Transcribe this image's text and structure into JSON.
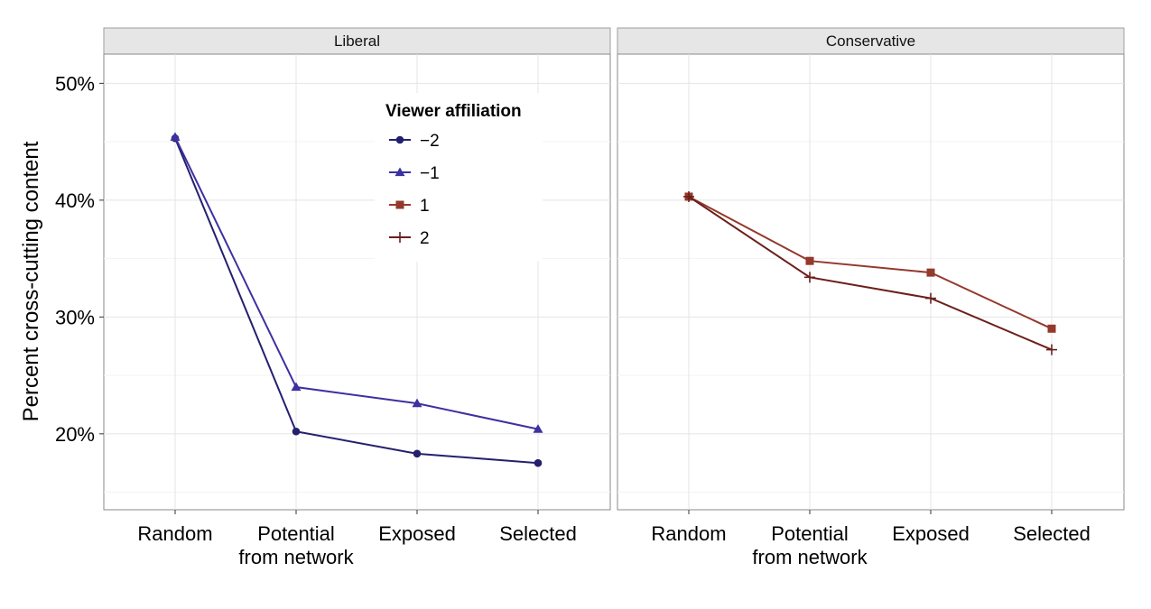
{
  "chart_data": {
    "type": "line",
    "ylabel": "Percent cross-cutting content",
    "xlabel": "",
    "ylim": [
      13.5,
      52.5
    ],
    "y_ticks": [
      20,
      30,
      40,
      50
    ],
    "y_tick_labels": [
      "20%",
      "30%",
      "40%",
      "50%"
    ],
    "grid": true,
    "categories": [
      "Random",
      "Potential\nfrom network",
      "Exposed",
      "Selected"
    ],
    "legend": {
      "title": "Viewer affiliation",
      "placement": "inside-top-right-of-left-panel",
      "entries": [
        {
          "label": "−2",
          "color": "#24206e",
          "shape": "circle"
        },
        {
          "label": "−1",
          "color": "#3d30a0",
          "shape": "triangle"
        },
        {
          "label": "1",
          "color": "#94392c",
          "shape": "square"
        },
        {
          "label": "2",
          "color": "#6b1f1a",
          "shape": "plus"
        }
      ]
    },
    "panels": [
      {
        "title": "Liberal",
        "series": [
          {
            "name": "−2",
            "color": "#24206e",
            "shape": "circle",
            "values": [
              45.3,
              20.2,
              18.3,
              17.5
            ]
          },
          {
            "name": "−1",
            "color": "#3d30a0",
            "shape": "triangle",
            "values": [
              45.4,
              24.0,
              22.6,
              20.4
            ]
          }
        ]
      },
      {
        "title": "Conservative",
        "series": [
          {
            "name": "1",
            "color": "#94392c",
            "shape": "square",
            "values": [
              40.3,
              34.8,
              33.8,
              29.0
            ]
          },
          {
            "name": "2",
            "color": "#6b1f1a",
            "shape": "plus",
            "values": [
              40.3,
              33.4,
              31.6,
              27.2
            ]
          }
        ]
      }
    ]
  }
}
